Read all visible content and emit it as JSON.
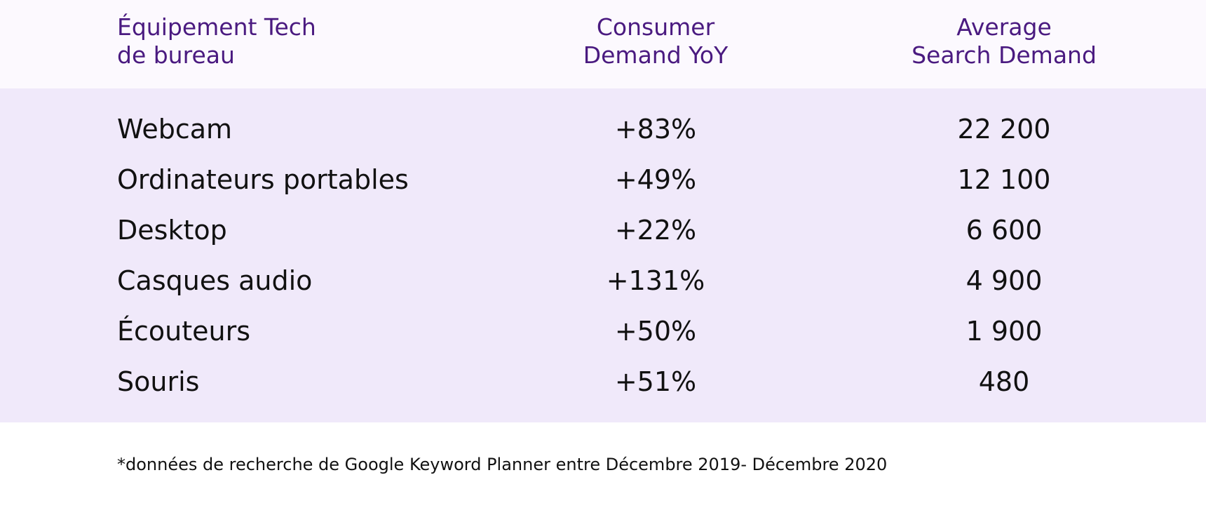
{
  "table": {
    "headers": [
      [
        "Équipement Tech",
        "de bureau"
      ],
      [
        "Consumer",
        "Demand YoY"
      ],
      [
        "Average",
        "Search Demand"
      ]
    ],
    "rows": [
      [
        "Webcam",
        "+83%",
        "22 200"
      ],
      [
        "Ordinateurs portables",
        "+49%",
        "12 100"
      ],
      [
        "Desktop",
        "+22%",
        "6 600"
      ],
      [
        "Casques audio",
        "+131%",
        "4 900"
      ],
      [
        "Écouteurs",
        "+50%",
        "1 900"
      ],
      [
        "Souris",
        "+51%",
        "480"
      ]
    ]
  },
  "footnote": "*données de recherche de Google Keyword Planner entre Décembre 2019- Décembre 2020",
  "colors": {
    "header_text": "#4a1a80",
    "header_bg": "#fcf9fe",
    "body_bg": "#f0e9fa",
    "body_text": "#111111"
  },
  "chart_data": {
    "type": "table",
    "columns": [
      "Équipement Tech de bureau",
      "Consumer Demand YoY",
      "Average Search Demand"
    ],
    "categories": [
      "Webcam",
      "Ordinateurs portables",
      "Desktop",
      "Casques audio",
      "Écouteurs",
      "Souris"
    ],
    "series": [
      {
        "name": "Consumer Demand YoY",
        "values": [
          83,
          49,
          22,
          131,
          50,
          51
        ]
      },
      {
        "name": "Average Search Demand",
        "values": [
          22200,
          12100,
          6600,
          4900,
          1900,
          480
        ]
      }
    ]
  }
}
